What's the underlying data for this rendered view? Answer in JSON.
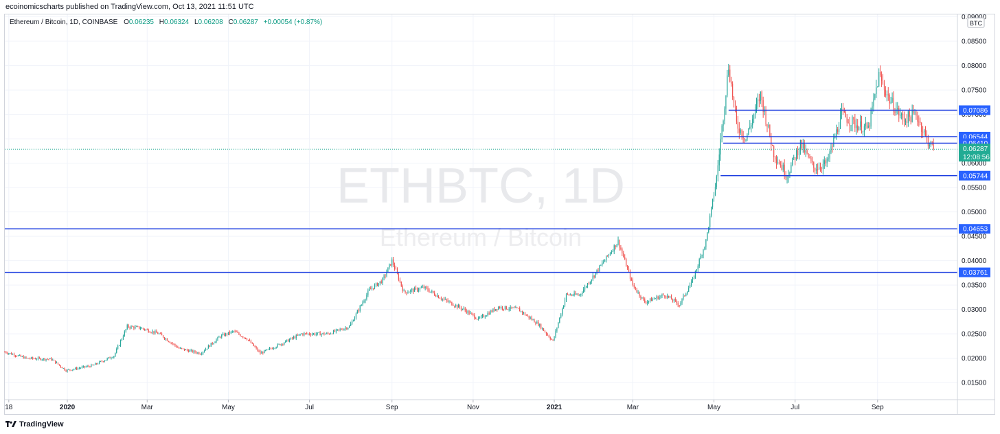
{
  "header": {
    "published": "ecoinomicscharts published on TradingView.com, Oct 13, 2021 11:51 UTC"
  },
  "legend": {
    "symbol": "Ethereum / Bitcoin, 1D, COINBASE",
    "open_label": "O",
    "open": "0.06235",
    "high_label": "H",
    "high": "0.06324",
    "low_label": "L",
    "low": "0.06208",
    "close_label": "C",
    "close": "0.06287",
    "change": "+0.00054 (+0.87%)"
  },
  "watermark": {
    "ticker": "ETHBTC, 1D",
    "name": "Ethereum / Bitcoin"
  },
  "footer": {
    "brand": "TradingView",
    "logo_icon": "tradingview-logo-icon"
  },
  "colors": {
    "up": "#26a69a",
    "down": "#ef5350",
    "level_line": "#1e3fe0",
    "label_bg": "#2962ff",
    "price_label_bg": "#22ab94"
  },
  "chart_data": {
    "type": "candlestick",
    "currency": "BTC",
    "y_range": [
      0.0115,
      0.0905
    ],
    "y_ticks": [
      "0.01500",
      "0.02000",
      "0.02500",
      "0.03000",
      "0.03500",
      "0.04000",
      "0.04500",
      "0.05000",
      "0.05500",
      "0.06000",
      "0.06500",
      "0.07000",
      "0.07500",
      "0.08000",
      "0.08500",
      "0.09000"
    ],
    "x_ticks": [
      "18",
      "2020",
      "Mar",
      "May",
      "Jul",
      "Sep",
      "Nov",
      "2021",
      "Mar",
      "May",
      "Jul",
      "Sep"
    ],
    "x_range": [
      "2019-11-15",
      "2021-10-31"
    ],
    "x_tick_dates": [
      "2019-11-18",
      "2020-01-01",
      "2020-03-01",
      "2020-05-01",
      "2020-07-01",
      "2020-09-01",
      "2020-11-01",
      "2021-01-01",
      "2021-03-01",
      "2021-05-01",
      "2021-07-01",
      "2021-09-01"
    ],
    "bold_ticks": [
      "2020",
      "2021"
    ],
    "horizontal_levels": [
      {
        "value": 0.07086,
        "label": "0.07086",
        "start": "2021-05-12"
      },
      {
        "value": 0.06544,
        "label": "0.06544",
        "start": "2021-05-08"
      },
      {
        "value": 0.0641,
        "label": "0.06410",
        "start": "2021-05-08"
      },
      {
        "value": 0.05744,
        "label": "0.05744",
        "start": "2021-05-06"
      },
      {
        "value": 0.04653,
        "label": "0.04653",
        "start": "2019-11-15"
      },
      {
        "value": 0.03761,
        "label": "0.03761",
        "start": "2019-11-15"
      }
    ],
    "last_price": {
      "value": 0.06287,
      "label": "0.06287",
      "countdown": "12:08:56"
    },
    "price_path": [
      [
        "2019-11-15",
        0.0213
      ],
      [
        "2019-12-01",
        0.02
      ],
      [
        "2019-12-20",
        0.0198
      ],
      [
        "2019-12-31",
        0.0175
      ],
      [
        "2020-01-20",
        0.0185
      ],
      [
        "2020-02-05",
        0.0205
      ],
      [
        "2020-02-15",
        0.0265
      ],
      [
        "2020-02-25",
        0.0262
      ],
      [
        "2020-03-10",
        0.025
      ],
      [
        "2020-03-25",
        0.022
      ],
      [
        "2020-04-10",
        0.021
      ],
      [
        "2020-04-25",
        0.0245
      ],
      [
        "2020-05-05",
        0.0255
      ],
      [
        "2020-05-15",
        0.024
      ],
      [
        "2020-05-25",
        0.021
      ],
      [
        "2020-06-10",
        0.023
      ],
      [
        "2020-06-25",
        0.025
      ],
      [
        "2020-07-15",
        0.025
      ],
      [
        "2020-07-31",
        0.0265
      ],
      [
        "2020-08-15",
        0.034
      ],
      [
        "2020-08-25",
        0.036
      ],
      [
        "2020-09-01",
        0.04
      ],
      [
        "2020-09-10",
        0.0335
      ],
      [
        "2020-09-25",
        0.0345
      ],
      [
        "2020-10-10",
        0.032
      ],
      [
        "2020-10-25",
        0.03
      ],
      [
        "2020-11-05",
        0.028
      ],
      [
        "2020-11-20",
        0.0305
      ],
      [
        "2020-12-05",
        0.03
      ],
      [
        "2020-12-20",
        0.027
      ],
      [
        "2020-12-31",
        0.0235
      ],
      [
        "2021-01-10",
        0.033
      ],
      [
        "2021-01-20",
        0.033
      ],
      [
        "2021-02-05",
        0.039
      ],
      [
        "2021-02-18",
        0.044
      ],
      [
        "2021-03-01",
        0.035
      ],
      [
        "2021-03-10",
        0.0315
      ],
      [
        "2021-03-25",
        0.033
      ],
      [
        "2021-04-05",
        0.031
      ],
      [
        "2021-04-15",
        0.036
      ],
      [
        "2021-04-25",
        0.044
      ],
      [
        "2021-05-03",
        0.057
      ],
      [
        "2021-05-12",
        0.08
      ],
      [
        "2021-05-18",
        0.068
      ],
      [
        "2021-05-25",
        0.065
      ],
      [
        "2021-06-05",
        0.074
      ],
      [
        "2021-06-15",
        0.062
      ],
      [
        "2021-06-25",
        0.0575
      ],
      [
        "2021-07-05",
        0.064
      ],
      [
        "2021-07-15",
        0.059
      ],
      [
        "2021-07-25",
        0.06
      ],
      [
        "2021-08-05",
        0.07
      ],
      [
        "2021-08-15",
        0.068
      ],
      [
        "2021-08-25",
        0.067
      ],
      [
        "2021-09-02",
        0.078
      ],
      [
        "2021-09-10",
        0.073
      ],
      [
        "2021-09-20",
        0.069
      ],
      [
        "2021-09-30",
        0.07
      ],
      [
        "2021-10-08",
        0.065
      ],
      [
        "2021-10-13",
        0.0629
      ]
    ]
  }
}
